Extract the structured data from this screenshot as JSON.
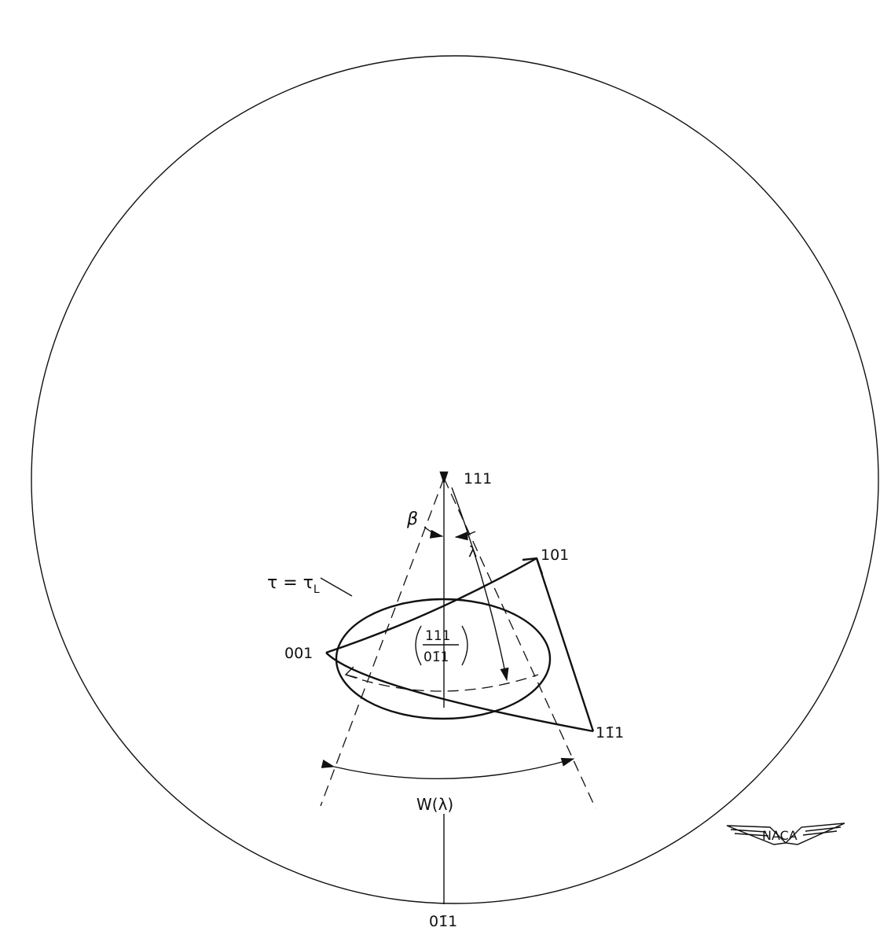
{
  "labels": {
    "pole_111": "111",
    "beta": "β",
    "lambda": "λ",
    "tau": {
      "text": "τ = τ",
      "subscript": "L"
    },
    "pole_101": "101",
    "pole_001": "001",
    "center_fraction": {
      "numerator": "111",
      "denominator": "01̄1"
    },
    "pole_1bar11": "11̄1",
    "width": "W(λ)",
    "pole_0bar11": "01̄1",
    "logo": "NACA"
  }
}
